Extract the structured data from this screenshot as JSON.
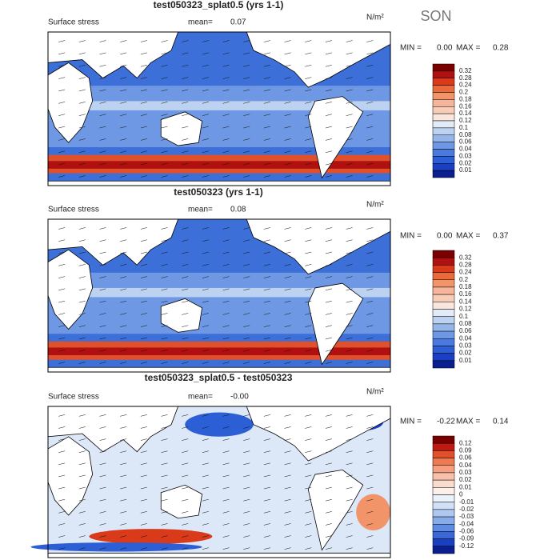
{
  "header": {
    "season": "SON"
  },
  "panels": [
    {
      "title": "test050323_splat0.5 (yrs 1-1)",
      "field": "Surface stress",
      "mean_label": "mean=",
      "mean": "0.07",
      "units": "N/m²",
      "min_label": "MIN =",
      "min": "0.00",
      "max_label": "MAX =",
      "max": "0.28",
      "colorbar": [
        "0.32",
        "0.28",
        "0.24",
        "0.2",
        "0.18",
        "0.16",
        "0.14",
        "0.12",
        "0.1",
        "0.08",
        "0.06",
        "0.04",
        "0.03",
        "0.02",
        "0.01"
      ]
    },
    {
      "title": "test050323 (yrs 1-1)",
      "field": "Surface stress",
      "mean_label": "mean=",
      "mean": "0.08",
      "units": "N/m²",
      "min_label": "MIN =",
      "min": "0.00",
      "max_label": "MAX =",
      "max": "0.37",
      "colorbar": [
        "0.32",
        "0.28",
        "0.24",
        "0.2",
        "0.18",
        "0.16",
        "0.14",
        "0.12",
        "0.1",
        "0.08",
        "0.06",
        "0.04",
        "0.03",
        "0.02",
        "0.01"
      ]
    },
    {
      "title": "test050323_splat0.5 - test050323",
      "field": "Surface stress",
      "mean_label": "mean=",
      "mean": "-0.00",
      "units": "N/m²",
      "min_label": "MIN =",
      "min": "-0.22",
      "max_label": "MAX =",
      "max": "0.14",
      "colorbar": [
        "0.12",
        "0.09",
        "0.06",
        "0.04",
        "0.03",
        "0.02",
        "0.01",
        "0",
        "-0.01",
        "-0.02",
        "-0.03",
        "-0.04",
        "-0.06",
        "-0.09",
        "-0.12"
      ]
    }
  ]
}
